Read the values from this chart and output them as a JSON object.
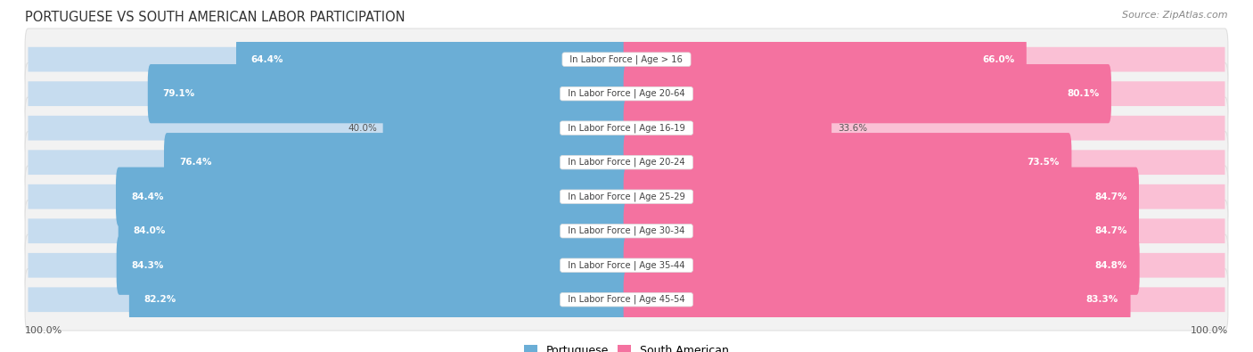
{
  "title": "PORTUGUESE VS SOUTH AMERICAN LABOR PARTICIPATION",
  "source": "Source: ZipAtlas.com",
  "categories": [
    "In Labor Force | Age > 16",
    "In Labor Force | Age 20-64",
    "In Labor Force | Age 16-19",
    "In Labor Force | Age 20-24",
    "In Labor Force | Age 25-29",
    "In Labor Force | Age 30-34",
    "In Labor Force | Age 35-44",
    "In Labor Force | Age 45-54"
  ],
  "portuguese": [
    64.4,
    79.1,
    40.0,
    76.4,
    84.4,
    84.0,
    84.3,
    82.2
  ],
  "south_american": [
    66.0,
    80.1,
    33.6,
    73.5,
    84.7,
    84.7,
    84.8,
    83.3
  ],
  "portuguese_color": "#6BAED6",
  "portuguese_color_light": "#C6DCEF",
  "south_american_color": "#F472A0",
  "south_american_color_light": "#FAC0D5",
  "max_value": 100.0,
  "bg_color": "#ffffff",
  "row_bg": "#f0f0f0",
  "title_color": "#333333",
  "source_color": "#888888",
  "label_color": "#555555"
}
